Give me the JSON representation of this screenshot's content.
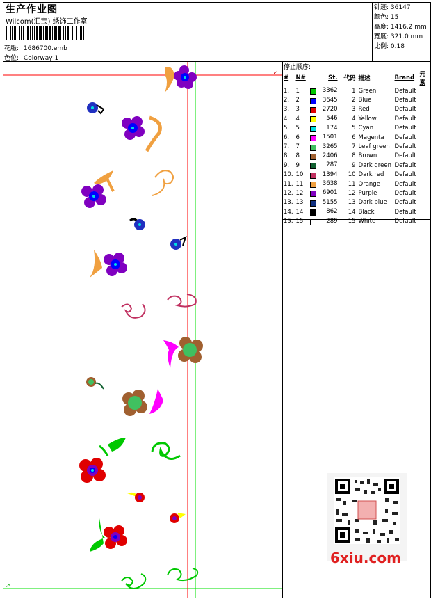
{
  "header": {
    "title": "生产作业图",
    "company": "Wilcom(汇宝) 绣饰工作室",
    "design_label": "花版:",
    "design_value": "1686700.emb",
    "colorway_label": "色位:",
    "colorway_value": "Colorway 1"
  },
  "stats": {
    "stitches_label": "针迹:",
    "stitches_value": "36147",
    "colors_label": "颜色:",
    "colors_value": "15",
    "height_label": "高度:",
    "height_value": "1416.2 mm",
    "width_label": "宽度:",
    "width_value": "321.0 mm",
    "scale_label": "比例:",
    "scale_value": "0.18"
  },
  "stop_sequence": {
    "title": "停止顺序:",
    "headers": [
      "#",
      "N#",
      "St.",
      "代码",
      "描述",
      "Brand",
      "元素"
    ],
    "rows": [
      {
        "num": "1.",
        "n": "1",
        "color": "#00c800",
        "st": "3362",
        "code": "1",
        "desc": "Green",
        "brand": "Default"
      },
      {
        "num": "2.",
        "n": "2",
        "color": "#0000ff",
        "st": "3645",
        "code": "2",
        "desc": "Blue",
        "brand": "Default"
      },
      {
        "num": "3.",
        "n": "3",
        "color": "#e00000",
        "st": "2720",
        "code": "3",
        "desc": "Red",
        "brand": "Default"
      },
      {
        "num": "4.",
        "n": "4",
        "color": "#ffff00",
        "st": "546",
        "code": "4",
        "desc": "Yellow",
        "brand": "Default"
      },
      {
        "num": "5.",
        "n": "5",
        "color": "#00e0e0",
        "st": "174",
        "code": "5",
        "desc": "Cyan",
        "brand": "Default"
      },
      {
        "num": "6.",
        "n": "6",
        "color": "#ff00ff",
        "st": "1501",
        "code": "6",
        "desc": "Magenta",
        "brand": "Default"
      },
      {
        "num": "7.",
        "n": "7",
        "color": "#40c060",
        "st": "3265",
        "code": "7",
        "desc": "Leaf green",
        "brand": "Default"
      },
      {
        "num": "8.",
        "n": "8",
        "color": "#a06030",
        "st": "2406",
        "code": "8",
        "desc": "Brown",
        "brand": "Default"
      },
      {
        "num": "9.",
        "n": "9",
        "color": "#106030",
        "st": "287",
        "code": "9",
        "desc": "Dark green",
        "brand": "Default"
      },
      {
        "num": "10.",
        "n": "10",
        "color": "#c03060",
        "st": "1394",
        "code": "10",
        "desc": "Dark red",
        "brand": "Default"
      },
      {
        "num": "11.",
        "n": "11",
        "color": "#f0a040",
        "st": "3638",
        "code": "11",
        "desc": "Orange",
        "brand": "Default"
      },
      {
        "num": "12.",
        "n": "12",
        "color": "#8000c0",
        "st": "6901",
        "code": "12",
        "desc": "Purple",
        "brand": "Default"
      },
      {
        "num": "13.",
        "n": "13",
        "color": "#103080",
        "st": "5155",
        "code": "13",
        "desc": "Dark blue",
        "brand": "Default"
      },
      {
        "num": "14.",
        "n": "14",
        "color": "#000000",
        "st": "862",
        "code": "14",
        "desc": "Black",
        "brand": "Default"
      },
      {
        "num": "15.",
        "n": "15",
        "color": "#ffffff",
        "st": "289",
        "code": "15",
        "desc": "White",
        "brand": "Default"
      }
    ]
  },
  "watermark": "6xiu.com"
}
